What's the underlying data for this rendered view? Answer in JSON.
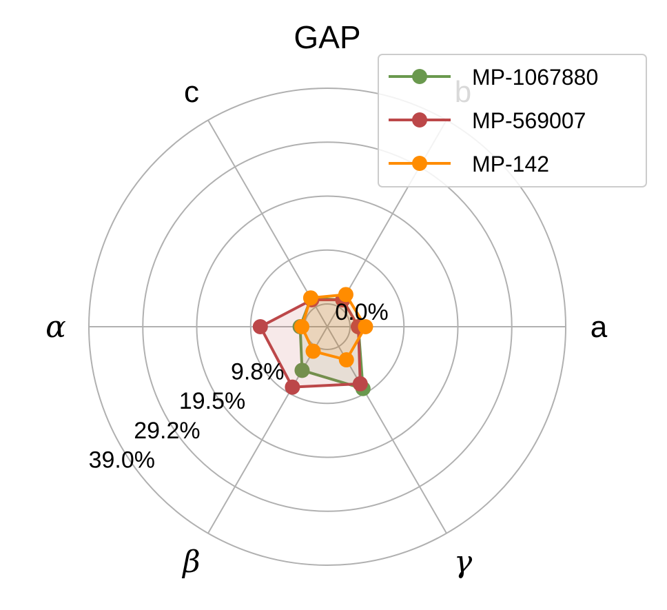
{
  "chart_data": {
    "type": "radar",
    "title": "GAP",
    "axes": [
      "a",
      "b",
      "c",
      "α",
      "β",
      "γ"
    ],
    "radial_ticks": [
      "0.0%",
      "9.8%",
      "19.5%",
      "29.2%",
      "39.0%"
    ],
    "r_range": [
      0.0,
      39.0
    ],
    "grid": true,
    "legend_position": "top-right",
    "series": [
      {
        "name": "MP-1067880",
        "color": "#6a994e",
        "values": [
          1.5,
          1.5,
          1.8,
          0.8,
          5.0,
          8.8
        ]
      },
      {
        "name": "MP-569007",
        "color": "#bc4749",
        "values": [
          1.5,
          1.5,
          1.5,
          8.0,
          8.5,
          7.8
        ]
      },
      {
        "name": "MP-142",
        "color": "#ff8c00",
        "values": [
          2.8,
          2.6,
          1.9,
          0.5,
          1.0,
          2.8
        ]
      }
    ]
  }
}
